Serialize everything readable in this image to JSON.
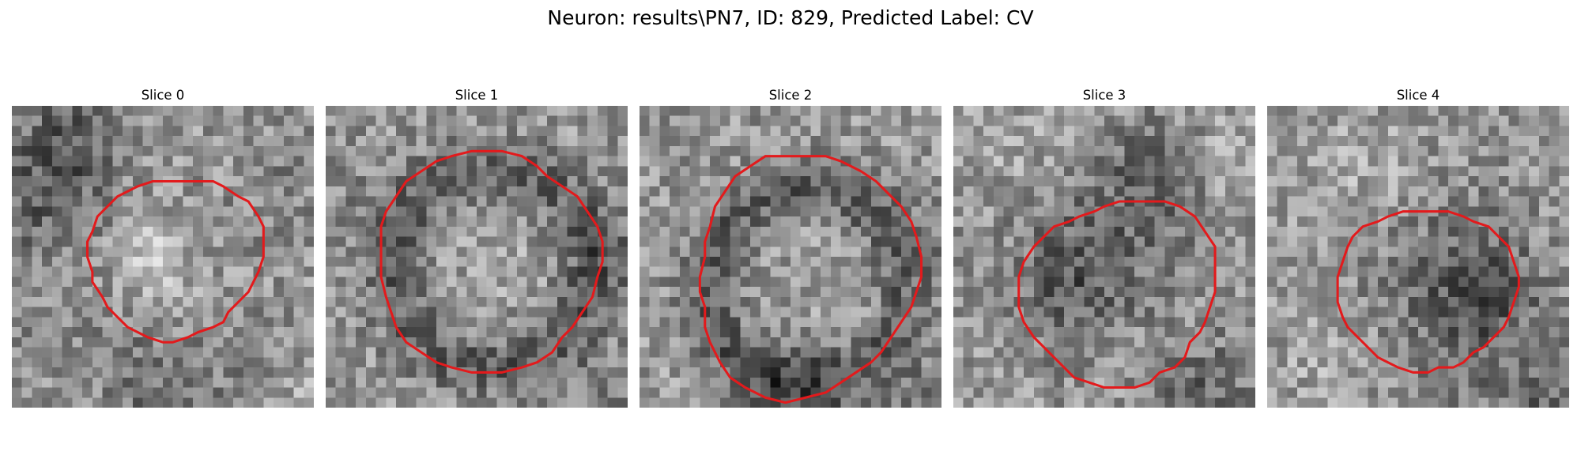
{
  "figure": {
    "title": "Neuron: results\\PN7, ID: 829, Predicted Label: CV"
  },
  "contour_color": "#e31a1c",
  "panels": [
    {
      "title": "Slice 0",
      "image": "grayscale microscopy patch",
      "contour": {
        "center": [
          16.2,
          15.0
        ],
        "radius": 8.3,
        "lobes": [
          [
            0.05,
            2,
            0.7
          ],
          [
            0.04,
            3,
            1.4
          ]
        ]
      },
      "texture": {
        "seed": 11,
        "blobs": [
          [
            5,
            3,
            4,
            -55
          ],
          [
            3,
            10,
            4,
            -45
          ],
          [
            15,
            16,
            6,
            25
          ],
          [
            13,
            15,
            2,
            50
          ],
          [
            20,
            12,
            4,
            -20
          ],
          [
            12,
            22,
            5,
            -25
          ],
          [
            24,
            24,
            4,
            -15
          ],
          [
            27,
            6,
            3,
            -15
          ],
          [
            15,
            29,
            4,
            -30
          ],
          [
            28,
            28,
            3,
            20
          ],
          [
            3,
            22,
            3,
            -15
          ]
        ]
      }
    },
    {
      "title": "Slice 1",
      "image": "grayscale microscopy patch",
      "contour": {
        "center": [
          16.0,
          15.5
        ],
        "radius": 11.0,
        "lobes": [
          [
            0.02,
            3,
            0.2
          ],
          [
            0.02,
            5,
            1.0
          ]
        ]
      },
      "texture": {
        "seed": 23,
        "ring": [
          16,
          15.5,
          9.8,
          2.2,
          -55
        ],
        "blobs": [
          [
            16,
            14,
            6,
            12
          ],
          [
            29,
            14,
            3,
            -30
          ],
          [
            27,
            28,
            3,
            -25
          ],
          [
            3,
            8,
            3,
            -15
          ]
        ]
      }
    },
    {
      "title": "Slice 2",
      "image": "grayscale microscopy patch",
      "contour": {
        "center": [
          16.5,
          16.8
        ],
        "radius": 11.5,
        "lobes": [
          [
            0.07,
            2,
            2.6
          ],
          [
            0.05,
            3,
            0.3
          ]
        ]
      },
      "texture": {
        "seed": 37,
        "ring": [
          16,
          17.5,
          9.8,
          2.0,
          -55
        ],
        "blobs": [
          [
            15,
            28,
            4,
            -45
          ],
          [
            28,
            28,
            3,
            -30
          ],
          [
            29,
            11,
            3,
            -20
          ],
          [
            20,
            17,
            5,
            10
          ],
          [
            4,
            29,
            3,
            20
          ]
        ]
      }
    },
    {
      "title": "Slice 3",
      "image": "grayscale microscopy patch",
      "contour": {
        "center": [
          16.5,
          18.5
        ],
        "radius": 9.5,
        "lobes": [
          [
            0.06,
            2,
            1.0
          ],
          [
            0.05,
            3,
            2.2
          ]
        ]
      },
      "texture": {
        "seed": 41,
        "blobs": [
          [
            16,
            13,
            6,
            -40
          ],
          [
            11,
            18,
            4,
            -45
          ],
          [
            19,
            6,
            3,
            -40
          ],
          [
            17,
            20,
            4,
            10
          ],
          [
            23,
            28,
            3,
            -40
          ],
          [
            28,
            5,
            3,
            25
          ],
          [
            6,
            3,
            3,
            20
          ],
          [
            28,
            26,
            3,
            -20
          ]
        ]
      }
    },
    {
      "title": "Slice 4",
      "image": "grayscale microscopy patch",
      "contour": {
        "center": [
          15.8,
          18.2
        ],
        "radius": 8.5,
        "lobes": [
          [
            0.06,
            2,
            0.2
          ],
          [
            0.03,
            3,
            1.0
          ]
        ]
      },
      "texture": {
        "seed": 53,
        "blobs": [
          [
            19,
            17,
            6,
            -50
          ],
          [
            21,
            19,
            3,
            -35
          ],
          [
            8,
            7,
            5,
            20
          ],
          [
            5,
            25,
            4,
            15
          ],
          [
            27,
            29,
            3,
            -40
          ],
          [
            18,
            29,
            3,
            -25
          ],
          [
            29,
            11,
            3,
            10
          ]
        ]
      }
    }
  ]
}
